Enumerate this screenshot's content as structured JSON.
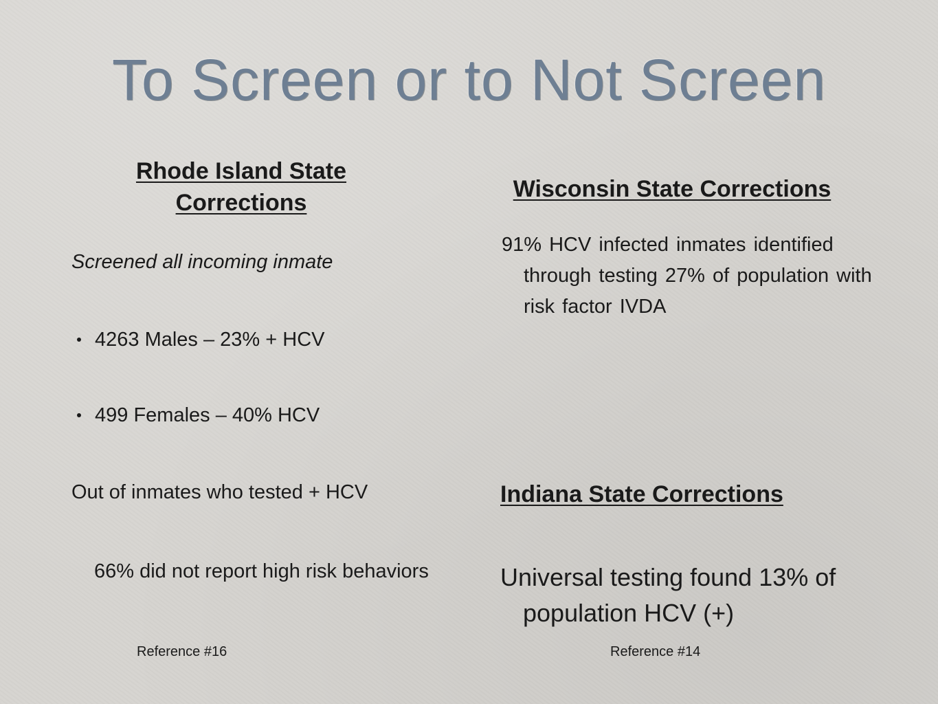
{
  "slide": {
    "title": "To Screen or to Not Screen"
  },
  "rhode_island": {
    "heading_line1": "Rhode Island State",
    "heading_line2": "Corrections",
    "intro": "Screened all incoming inmate",
    "bullets": [
      "4263  Males – 23% + HCV",
      "499 Females – 40% HCV"
    ],
    "out_of": "Out of inmates who tested + HCV",
    "finding": "66% did not report high risk behaviors",
    "reference": "Reference #16"
  },
  "wisconsin": {
    "heading": "Wisconsin State Corrections",
    "text": "91% HCV infected inmates identified through testing 27% of population with risk factor IVDA"
  },
  "indiana": {
    "heading": "Indiana State Corrections",
    "text": "Universal testing found 13% of  population HCV (+)",
    "reference": "Reference #14"
  }
}
